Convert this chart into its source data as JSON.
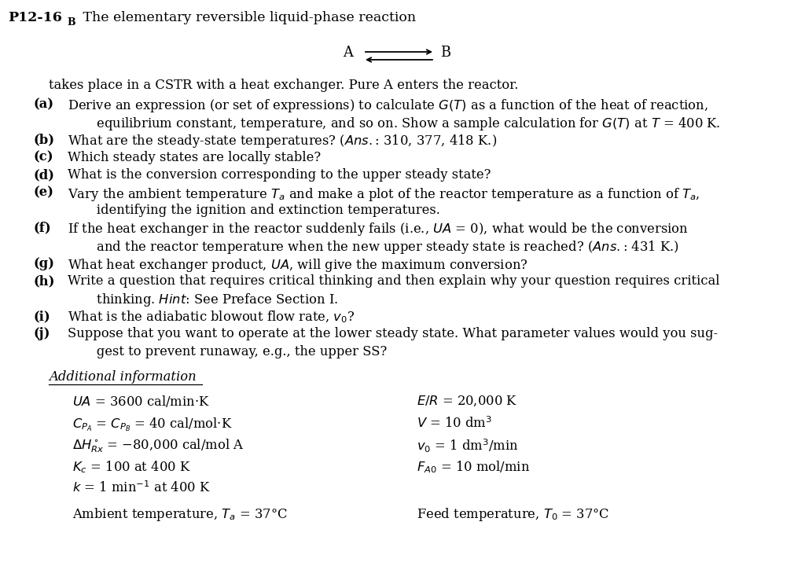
{
  "bg_color": "#ffffff",
  "fontsize": 11.8,
  "title_bold": "P12-16",
  "title_sub": "B",
  "title_rest": " The elementary reversible liquid-phase reaction",
  "intro_line": "takes place in a CSTR with a heat exchanger. Pure A enters the reactor.",
  "parts_data": [
    [
      "(a)",
      "Derive an expression (or set of expressions) to calculate $G(T)$ as a function of the heat of reaction,"
    ],
    [
      "",
      "       equilibrium constant, temperature, and so on. Show a sample calculation for $G(T)$ at $T$ = 400 K."
    ],
    [
      "(b)",
      "What are the steady-state temperatures? ($\\it{Ans.}$: 310, 377, 418 K.)"
    ],
    [
      "(c)",
      "Which steady states are locally stable?"
    ],
    [
      "(d)",
      "What is the conversion corresponding to the upper steady state?"
    ],
    [
      "(e)",
      "Vary the ambient temperature $T_a$ and make a plot of the reactor temperature as a function of $T_a$,"
    ],
    [
      "",
      "       identifying the ignition and extinction temperatures."
    ],
    [
      "(f)",
      "If the heat exchanger in the reactor suddenly fails (i.e., $UA$ = 0), what would be the conversion"
    ],
    [
      "",
      "       and the reactor temperature when the new upper steady state is reached? ($\\it{Ans.}$: 431 K.)"
    ],
    [
      "(g)",
      "What heat exchanger product, $UA$, will give the maximum conversion?"
    ],
    [
      "(h)",
      "Write a question that requires critical thinking and then explain why your question requires critical"
    ],
    [
      "",
      "       thinking. $\\it{Hint}$: See Preface Section I."
    ],
    [
      "(i)",
      "What is the adiabatic blowout flow rate, $v_0$?"
    ],
    [
      "(j)",
      "Suppose that you want to operate at the lower steady state. What parameter values would you sug-"
    ],
    [
      "",
      "       gest to prevent runaway, e.g., the upper SS?"
    ]
  ],
  "additional_title": "Additional information",
  "params_left": [
    "$UA$ = 3600 cal/min·K",
    "$C_{P_A}$ = $C_{P_B}$ = 40 cal/mol·K",
    "$\\Delta H^\\circ_{Rx}$ = −80,000 cal/mol A",
    "$K_c$ = 100 at 400 K",
    "$k$ = 1 min$^{-1}$ at 400 K"
  ],
  "params_right": [
    "$E/R$ = 20,000 K",
    "$V$ = 10 dm$^3$",
    "$v_0$ = 1 dm$^3$/min",
    "$F_{A0}$ = 10 mol/min",
    ""
  ],
  "ambient_line": "Ambient temperature, $T_a$ = 37°C",
  "feed_line": "Feed temperature, $T_0$ = 37°C"
}
